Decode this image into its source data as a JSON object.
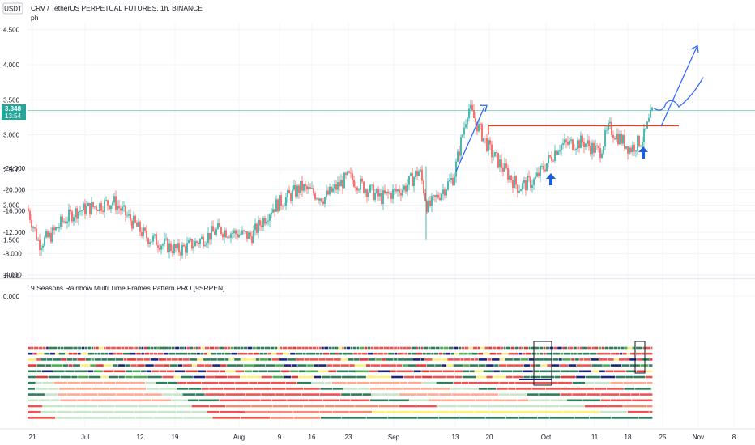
{
  "header": {
    "currency": "USDT",
    "title": "CRV / TetherUS PERPETUAL FUTURES, 1h, BINANCE",
    "subtitle": "ph"
  },
  "price_badge": {
    "value": "3.348",
    "countdown": "13:54",
    "color": "#26a69a"
  },
  "colors": {
    "up": "#26a69a",
    "down": "#ef5350",
    "resistance": "#f23a1e",
    "arrow_blue": "#1f5fd6",
    "annotation_blue": "#2962ff",
    "price_line": "#26a69a"
  },
  "chart_data": [
    {
      "type": "candlestick",
      "title": "CRV / TetherUS PERPETUAL FUTURES, 1h, BINANCE",
      "ylim": [
        1.0,
        4.6
      ],
      "y_ticks": [
        "1.000",
        "1.500",
        "2.000",
        "2.500",
        "3.000",
        "3.500",
        "4.000",
        "4.500"
      ],
      "x_ticks": [
        "21",
        "Jul",
        "12",
        "19",
        "Aug",
        "9",
        "16",
        "23",
        "Sep",
        "13",
        "20",
        "Oct",
        "11",
        "18",
        "25",
        "Nov",
        "8"
      ],
      "x": [
        "Jun 21",
        "Jun 25",
        "Jul 1",
        "Jul 5",
        "Jul 9",
        "Jul 14",
        "Jul 19",
        "Jul 24",
        "Jul 29",
        "Aug 3",
        "Aug 8",
        "Aug 12",
        "Aug 16",
        "Aug 21",
        "Aug 26",
        "Aug 30",
        "Sep 3",
        "Sep 7",
        "Sep 10",
        "Sep 13",
        "Sep 16",
        "Sep 20",
        "Sep 24",
        "Sep 28",
        "Oct 2",
        "Oct 6",
        "Oct 10",
        "Oct 14",
        "Oct 18",
        "Oct 21",
        "Oct 23"
      ],
      "values": [
        1.95,
        1.45,
        1.55,
        1.75,
        1.9,
        2.05,
        1.55,
        1.35,
        1.45,
        1.65,
        1.55,
        1.95,
        2.25,
        2.1,
        2.4,
        2.1,
        2.25,
        2.5,
        1.95,
        2.4,
        3.4,
        2.75,
        2.25,
        2.35,
        2.85,
        2.9,
        2.75,
        3.1,
        2.8,
        2.95,
        3.348
      ],
      "current_price": 3.348,
      "annotations": [
        "resistance line at ~3.13",
        "blue up-arrows at Oct 1 and Oct 21",
        "projected path toward ~4.25"
      ]
    },
    {
      "type": "heatmap",
      "title": "9 Seasons Rainbow Multi Time Frames Pattern PRO [9SRPEN]",
      "ylim": [
        -24.0,
        0.0
      ],
      "y_ticks": [
        "0.000",
        "-4.000",
        "-8.000",
        "-12.000",
        "-16.000",
        "-20.000",
        "-24.000"
      ],
      "rows": 13
    }
  ]
}
